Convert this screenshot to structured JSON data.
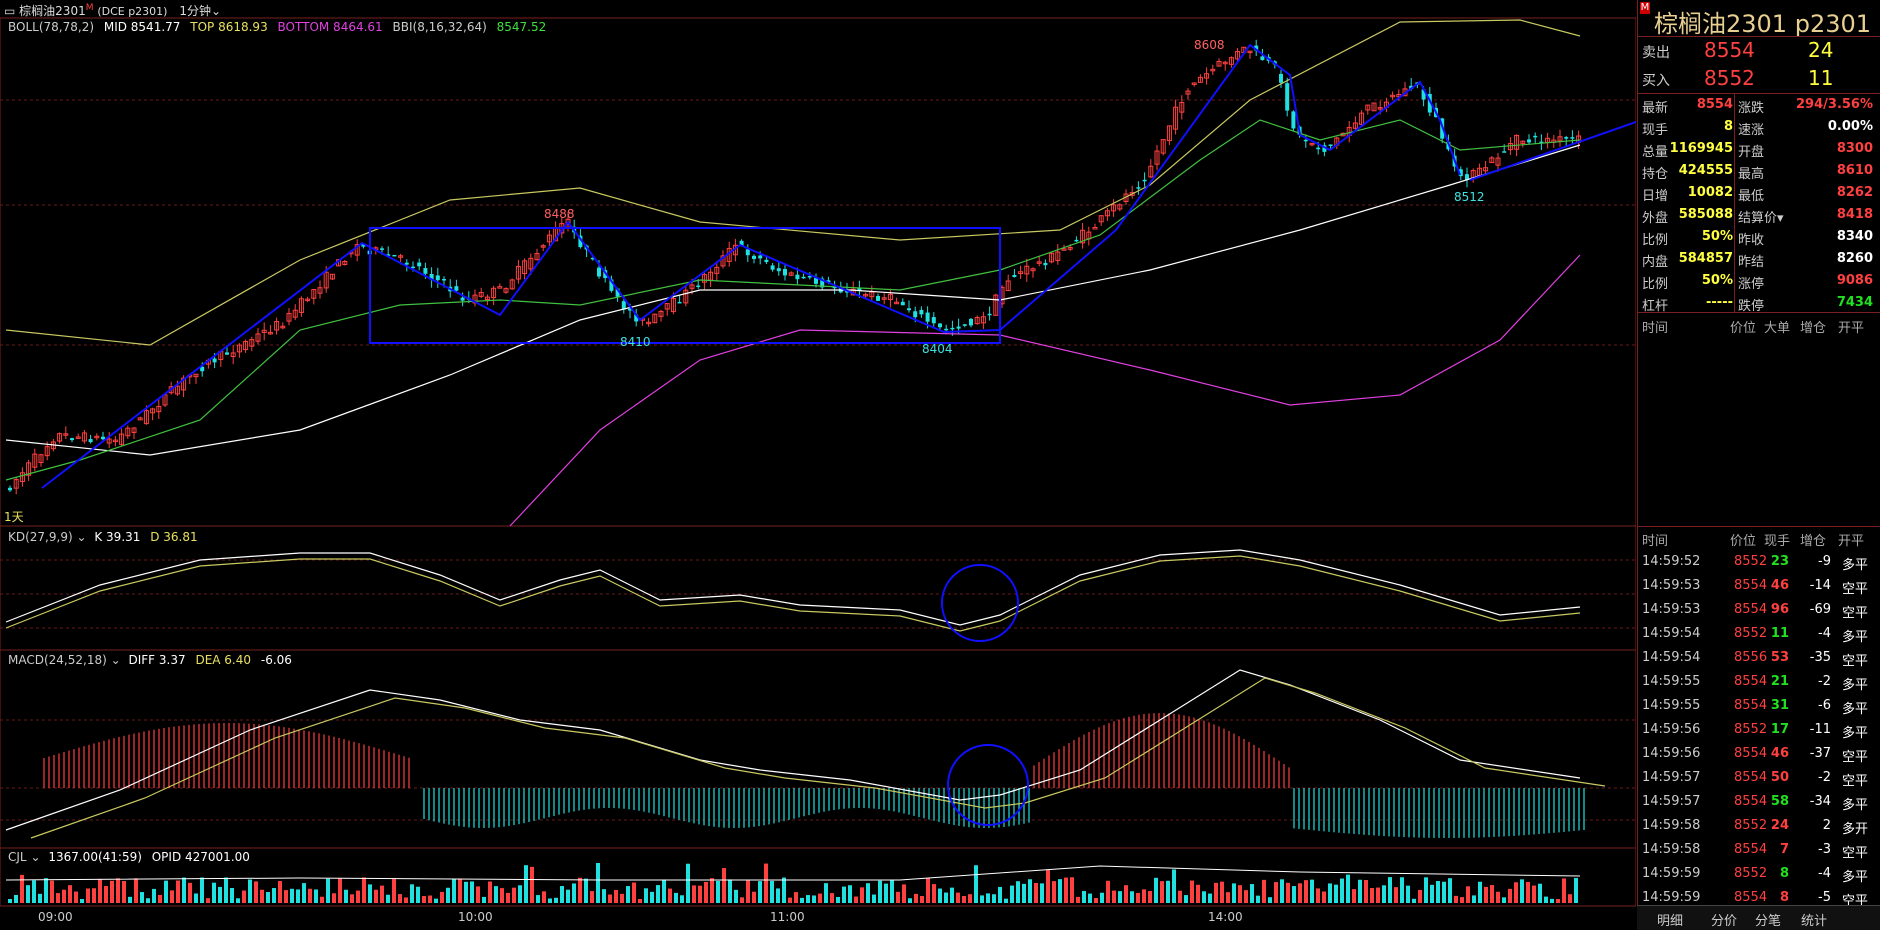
{
  "title": {
    "name": "棕榈油2301",
    "badge": "M",
    "code": "(DCE p2301)",
    "period": "1分钟"
  },
  "boll_legend": {
    "boll": "BOLL(78,78,2)",
    "mid": "MID 8541.77",
    "top": "TOP 8618.93",
    "bottom": "BOTTOM 8464.61",
    "bbi_label": "BBI(8,16,32,64)",
    "bbi_value": "8547.52"
  },
  "kd_legend": {
    "name": "KD(27,9,9)",
    "k": "K 39.31",
    "d": "D 36.81"
  },
  "macd_legend": {
    "name": "MACD(24,52,18)",
    "diff": "DIFF 3.37",
    "dea": "DEA 6.40",
    "macd": "-6.06"
  },
  "cjl_legend": {
    "name": "CJL",
    "value": "1367.00(41:59)",
    "opid": "OPID 427001.00"
  },
  "price_labels": {
    "p8608": "8608",
    "p8488": "8488",
    "p8410": "8410",
    "p8404": "8404",
    "p8512": "8512",
    "day": "1天"
  },
  "time_axis": [
    "09:00",
    "10:00",
    "11:00",
    "14:00"
  ],
  "colors": {
    "up": "#ff4040",
    "down": "#20e0e0",
    "draw": "#1010ff",
    "mid": "#ffffff",
    "upper": "#c8c860",
    "lower": "#e040e0",
    "bbi": "#40c040"
  },
  "panel": {
    "title": "棕榈油2301   p2301",
    "badge": "M",
    "sell_label": "卖出",
    "sell_price": "8554",
    "sell_vol": "24",
    "buy_label": "买入",
    "buy_price": "8552",
    "buy_vol": "11",
    "stats": [
      {
        "k1": "最新",
        "v1": "8554",
        "k2": "涨跌",
        "v2": "294/3.56%"
      },
      {
        "k1": "现手",
        "v1": "8",
        "k2": "速涨",
        "v2": "0.00%"
      },
      {
        "k1": "总量",
        "v1": "1169945",
        "k2": "开盘",
        "v2": "8300"
      },
      {
        "k1": "持仓",
        "v1": "424555",
        "k2": "最高",
        "v2": "8610"
      },
      {
        "k1": "日增",
        "v1": "10082",
        "k2": "最低",
        "v2": "8262"
      },
      {
        "k1": "外盘",
        "v1": "585088",
        "k2": "结算价▾",
        "v2": "8418"
      },
      {
        "k1": "比例",
        "v1": "50%",
        "k2": "昨收",
        "v2": "8340"
      },
      {
        "k1": "内盘",
        "v1": "584857",
        "k2": "昨结",
        "v2": "8260"
      },
      {
        "k1": "比例",
        "v1": "50%",
        "k2": "涨停",
        "v2": "9086"
      },
      {
        "k1": "杠杆",
        "v1": "-----",
        "k2": "跌停",
        "v2": "7434"
      }
    ],
    "big_header": [
      "时间",
      "价位",
      "大单",
      "增仓",
      "开平"
    ],
    "tick_header": [
      "时间",
      "价位",
      "现手",
      "增仓",
      "开平"
    ],
    "ticks": [
      {
        "t": "14:59:52",
        "p": "8552",
        "v": "23",
        "z": "-9",
        "o": "多平"
      },
      {
        "t": "14:59:53",
        "p": "8554",
        "v": "46",
        "z": "-14",
        "o": "空平"
      },
      {
        "t": "14:59:53",
        "p": "8554",
        "v": "96",
        "z": "-69",
        "o": "空平"
      },
      {
        "t": "14:59:54",
        "p": "8552",
        "v": "11",
        "z": "-4",
        "o": "多平"
      },
      {
        "t": "14:59:54",
        "p": "8556",
        "v": "53",
        "z": "-35",
        "o": "空平"
      },
      {
        "t": "14:59:55",
        "p": "8554",
        "v": "21",
        "z": "-2",
        "o": "多平"
      },
      {
        "t": "14:59:55",
        "p": "8554",
        "v": "31",
        "z": "-6",
        "o": "多平"
      },
      {
        "t": "14:59:56",
        "p": "8552",
        "v": "17",
        "z": "-11",
        "o": "多平"
      },
      {
        "t": "14:59:56",
        "p": "8554",
        "v": "46",
        "z": "-37",
        "o": "空平"
      },
      {
        "t": "14:59:57",
        "p": "8554",
        "v": "50",
        "z": "-2",
        "o": "空平"
      },
      {
        "t": "14:59:57",
        "p": "8554",
        "v": "58",
        "z": "-34",
        "o": "多平"
      },
      {
        "t": "14:59:58",
        "p": "8552",
        "v": "24",
        "z": "2",
        "o": "多开"
      },
      {
        "t": "14:59:58",
        "p": "8554",
        "v": "7",
        "z": "-3",
        "o": "空平"
      },
      {
        "t": "14:59:59",
        "p": "8552",
        "v": "8",
        "z": "-4",
        "o": "多平"
      },
      {
        "t": "14:59:59",
        "p": "8554",
        "v": "8",
        "z": "-5",
        "o": "空平"
      }
    ],
    "tabs": [
      "明细",
      "分价",
      "分笔",
      "统计"
    ]
  }
}
